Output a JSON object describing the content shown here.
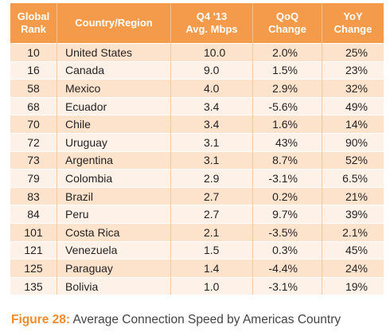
{
  "chart_data": {
    "type": "table",
    "columns": [
      [
        "Global",
        "Rank"
      ],
      [
        "Country/Region"
      ],
      [
        "Q4 '13",
        "Avg. Mbps"
      ],
      [
        "QoQ",
        "Change"
      ],
      [
        "YoY",
        "Change"
      ]
    ],
    "rows": [
      [
        "10",
        "United States",
        "10.0",
        "2.0%",
        "25%"
      ],
      [
        "16",
        "Canada",
        "9.0",
        "1.5%",
        "23%"
      ],
      [
        "58",
        "Mexico",
        "4.0",
        "2.9%",
        "32%"
      ],
      [
        "68",
        "Ecuador",
        "3.4",
        "-5.6%",
        "49%"
      ],
      [
        "70",
        "Chile",
        "3.4",
        "1.6%",
        "14%"
      ],
      [
        "72",
        "Uruguay",
        "3.1",
        "43%",
        "90%"
      ],
      [
        "73",
        "Argentina",
        "3.1",
        "8.7%",
        "52%"
      ],
      [
        "79",
        "Colombia",
        "2.9",
        "-3.1%",
        "6.5%"
      ],
      [
        "83",
        "Brazil",
        "2.7",
        "0.2%",
        "21%"
      ],
      [
        "84",
        "Peru",
        "2.7",
        "9.7%",
        "39%"
      ],
      [
        "101",
        "Costa Rica",
        "2.1",
        "-3.5%",
        "2.1%"
      ],
      [
        "121",
        "Venezuela",
        "1.5",
        "0.3%",
        "45%"
      ],
      [
        "125",
        "Paraguay",
        "1.4",
        "-4.4%",
        "24%"
      ],
      [
        "135",
        "Bolivia",
        "1.0",
        "-3.1%",
        "19%"
      ]
    ],
    "caption_label": "Figure 28:",
    "caption_text": " Average Connection Speed by Americas Country"
  },
  "colors": {
    "header_bg": "#f39b4a",
    "row_odd": "#fde3cc",
    "row_even": "#fef2e8",
    "caption_accent": "#f08c2c"
  }
}
